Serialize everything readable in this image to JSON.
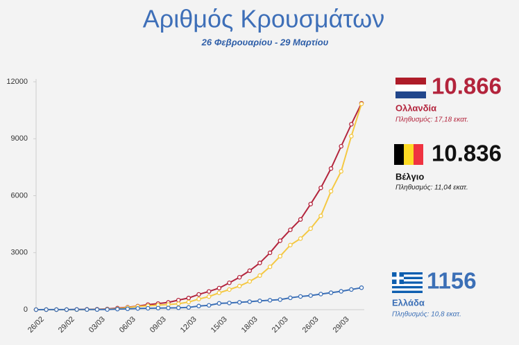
{
  "chart_data": {
    "type": "line",
    "title": "Αριθμός Κρουσμάτων",
    "subtitle": "26 Φεβρουαρίου - 29 Μαρτίου",
    "categories": [
      "26/02",
      null,
      null,
      "29/02",
      null,
      null,
      "03/03",
      null,
      null,
      "06/03",
      null,
      null,
      "09/03",
      null,
      null,
      "12/03",
      null,
      null,
      "15/03",
      null,
      null,
      "18/03",
      null,
      null,
      "21/03",
      null,
      null,
      "26/03",
      null,
      null,
      "29/03",
      null,
      null
    ],
    "ylim": [
      0,
      12000
    ],
    "yticks": [
      0,
      3000,
      6000,
      9000,
      12000
    ],
    "grid": false,
    "series": [
      {
        "name": "Ολλανδία",
        "color": "#b3243c",
        "population": "Πληθυσμός: 17,18 εκατ.",
        "values": [
          0,
          1,
          1,
          2,
          10,
          18,
          24,
          38,
          82,
          128,
          188,
          265,
          321,
          382,
          503,
          614,
          804,
          959,
          1135,
          1413,
          1705,
          2051,
          2460,
          2994,
          3631,
          4204,
          4749,
          5560,
          6412,
          7431,
          8603,
          9762,
          10866
        ],
        "value_labels": [
          null,
          null,
          null,
          null,
          null,
          null,
          null,
          null,
          null,
          null,
          null,
          null,
          null,
          null,
          null,
          null,
          null,
          null,
          null,
          null,
          null,
          null,
          null,
          null,
          null,
          null,
          null,
          null,
          null,
          null,
          null,
          null,
          "10.866"
        ]
      },
      {
        "name": "Βέλγιο",
        "color": "#f4c842",
        "population": "Πληθυσμός: 11,04 εκατ.",
        "values": [
          1,
          1,
          1,
          1,
          2,
          8,
          13,
          23,
          50,
          109,
          169,
          200,
          239,
          267,
          314,
          399,
          559,
          689,
          886,
          1058,
          1243,
          1486,
          1795,
          2257,
          2815,
          3401,
          3743,
          4269,
          4937,
          6235,
          7284,
          9134,
          10836
        ],
        "value_labels": [
          null,
          null,
          null,
          null,
          null,
          null,
          null,
          null,
          null,
          null,
          null,
          null,
          null,
          null,
          null,
          null,
          null,
          null,
          null,
          null,
          null,
          null,
          null,
          null,
          null,
          null,
          null,
          null,
          null,
          null,
          null,
          null,
          "10.836"
        ]
      },
      {
        "name": "Ελλάδα",
        "color": "#3b6fb6",
        "population": "Πληθυσμός: 10,8 εκατ.",
        "values": [
          1,
          3,
          4,
          4,
          7,
          7,
          7,
          9,
          31,
          45,
          66,
          73,
          84,
          89,
          99,
          117,
          190,
          228,
          331,
          352,
          387,
          418,
          464,
          495,
          530,
          624,
          695,
          743,
          821,
          892,
          966,
          1061,
          1156
        ]
      }
    ]
  }
}
